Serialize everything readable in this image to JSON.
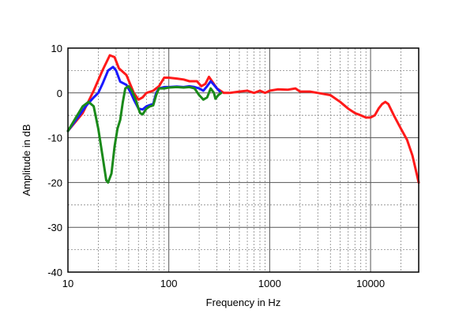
{
  "chart_data": {
    "type": "line",
    "xlabel": "Frequency in Hz",
    "ylabel": "Amplitude in dB",
    "x_scale": "log",
    "xlim": [
      10,
      30000
    ],
    "ylim": [
      -40,
      10
    ],
    "grid": true,
    "x_ticks": [
      {
        "value": 10,
        "label": "10"
      },
      {
        "value": 100,
        "label": "100"
      },
      {
        "value": 1000,
        "label": "1000"
      },
      {
        "value": 10000,
        "label": "10000"
      }
    ],
    "y_ticks": [
      {
        "value": 10,
        "label": "10"
      },
      {
        "value": 0,
        "label": "0"
      },
      {
        "value": -10,
        "label": "-10"
      },
      {
        "value": -20,
        "label": "-20"
      },
      {
        "value": -30,
        "label": "-30"
      },
      {
        "value": -40,
        "label": "-40"
      }
    ],
    "series": [
      {
        "color": "#ff1a1a",
        "points": [
          [
            10,
            -8.5
          ],
          [
            14,
            -4.5
          ],
          [
            18,
            0.5
          ],
          [
            22,
            5
          ],
          [
            26,
            8.4
          ],
          [
            29,
            8
          ],
          [
            32,
            5.5
          ],
          [
            38,
            4
          ],
          [
            45,
            0
          ],
          [
            50,
            -1.5
          ],
          [
            55,
            -1
          ],
          [
            60,
            0
          ],
          [
            70,
            0.5
          ],
          [
            80,
            1.5
          ],
          [
            90,
            3.4
          ],
          [
            100,
            3.4
          ],
          [
            120,
            3.2
          ],
          [
            140,
            3
          ],
          [
            160,
            2.6
          ],
          [
            190,
            2.6
          ],
          [
            210,
            1.5
          ],
          [
            230,
            2
          ],
          [
            250,
            3.6
          ],
          [
            270,
            2.5
          ],
          [
            300,
            1
          ],
          [
            350,
            0
          ],
          [
            400,
            0
          ],
          [
            500,
            0.3
          ],
          [
            600,
            0.5
          ],
          [
            700,
            0
          ],
          [
            800,
            0.5
          ],
          [
            900,
            0
          ],
          [
            1000,
            0.5
          ],
          [
            1200,
            0.8
          ],
          [
            1500,
            0.7
          ],
          [
            1800,
            1
          ],
          [
            2000,
            0.3
          ],
          [
            2500,
            0.3
          ],
          [
            3000,
            0
          ],
          [
            4000,
            -0.5
          ],
          [
            5000,
            -2
          ],
          [
            6000,
            -3.5
          ],
          [
            7000,
            -4.5
          ],
          [
            8000,
            -5
          ],
          [
            9000,
            -5.5
          ],
          [
            10000,
            -5.5
          ],
          [
            11000,
            -5
          ],
          [
            12000,
            -3.5
          ],
          [
            13000,
            -2.5
          ],
          [
            14000,
            -2
          ],
          [
            15000,
            -2.5
          ],
          [
            17000,
            -5
          ],
          [
            20000,
            -8
          ],
          [
            23000,
            -10.5
          ],
          [
            26000,
            -14
          ],
          [
            30000,
            -20
          ]
        ]
      },
      {
        "color": "#1a1aff",
        "points": [
          [
            10,
            -8.5
          ],
          [
            13,
            -5
          ],
          [
            15,
            -3
          ],
          [
            18,
            -1
          ],
          [
            20,
            0
          ],
          [
            22,
            2
          ],
          [
            25,
            5
          ],
          [
            28,
            5.8
          ],
          [
            30,
            5
          ],
          [
            33,
            2.5
          ],
          [
            38,
            1.8
          ],
          [
            42,
            0
          ],
          [
            45,
            -1.5
          ],
          [
            50,
            -3.5
          ],
          [
            55,
            -3.7
          ],
          [
            60,
            -3
          ],
          [
            65,
            -2.7
          ],
          [
            70,
            -2.5
          ],
          [
            75,
            0
          ],
          [
            80,
            1
          ],
          [
            90,
            1.3
          ],
          [
            100,
            1.3
          ],
          [
            120,
            1.4
          ],
          [
            140,
            1.3
          ],
          [
            160,
            1.5
          ],
          [
            180,
            1.3
          ],
          [
            200,
            1
          ],
          [
            220,
            0.5
          ],
          [
            240,
            1.5
          ],
          [
            260,
            2.6
          ],
          [
            280,
            1.8
          ],
          [
            300,
            1
          ],
          [
            330,
            0
          ]
        ]
      },
      {
        "color": "#1a8a1a",
        "points": [
          [
            10,
            -8.5
          ],
          [
            12,
            -5.5
          ],
          [
            14,
            -3
          ],
          [
            16,
            -2
          ],
          [
            18,
            -3
          ],
          [
            20,
            -8
          ],
          [
            22,
            -14
          ],
          [
            24,
            -19.5
          ],
          [
            25,
            -20
          ],
          [
            27,
            -18
          ],
          [
            29,
            -12
          ],
          [
            31,
            -8
          ],
          [
            33,
            -6
          ],
          [
            35,
            -2
          ],
          [
            37,
            1
          ],
          [
            40,
            1.5
          ],
          [
            43,
            0.5
          ],
          [
            47,
            -1.5
          ],
          [
            50,
            -3.5
          ],
          [
            52,
            -4.5
          ],
          [
            55,
            -4.8
          ],
          [
            60,
            -3.5
          ],
          [
            65,
            -3
          ],
          [
            70,
            -2.8
          ],
          [
            75,
            -0.5
          ],
          [
            80,
            1
          ],
          [
            90,
            1
          ],
          [
            100,
            1.2
          ],
          [
            120,
            1.3
          ],
          [
            140,
            1.2
          ],
          [
            160,
            1.3
          ],
          [
            180,
            1
          ],
          [
            200,
            -0.5
          ],
          [
            220,
            -1.5
          ],
          [
            240,
            -1
          ],
          [
            260,
            1
          ],
          [
            280,
            0
          ],
          [
            290,
            -1.3
          ],
          [
            310,
            -0.5
          ],
          [
            330,
            0
          ]
        ]
      }
    ]
  }
}
